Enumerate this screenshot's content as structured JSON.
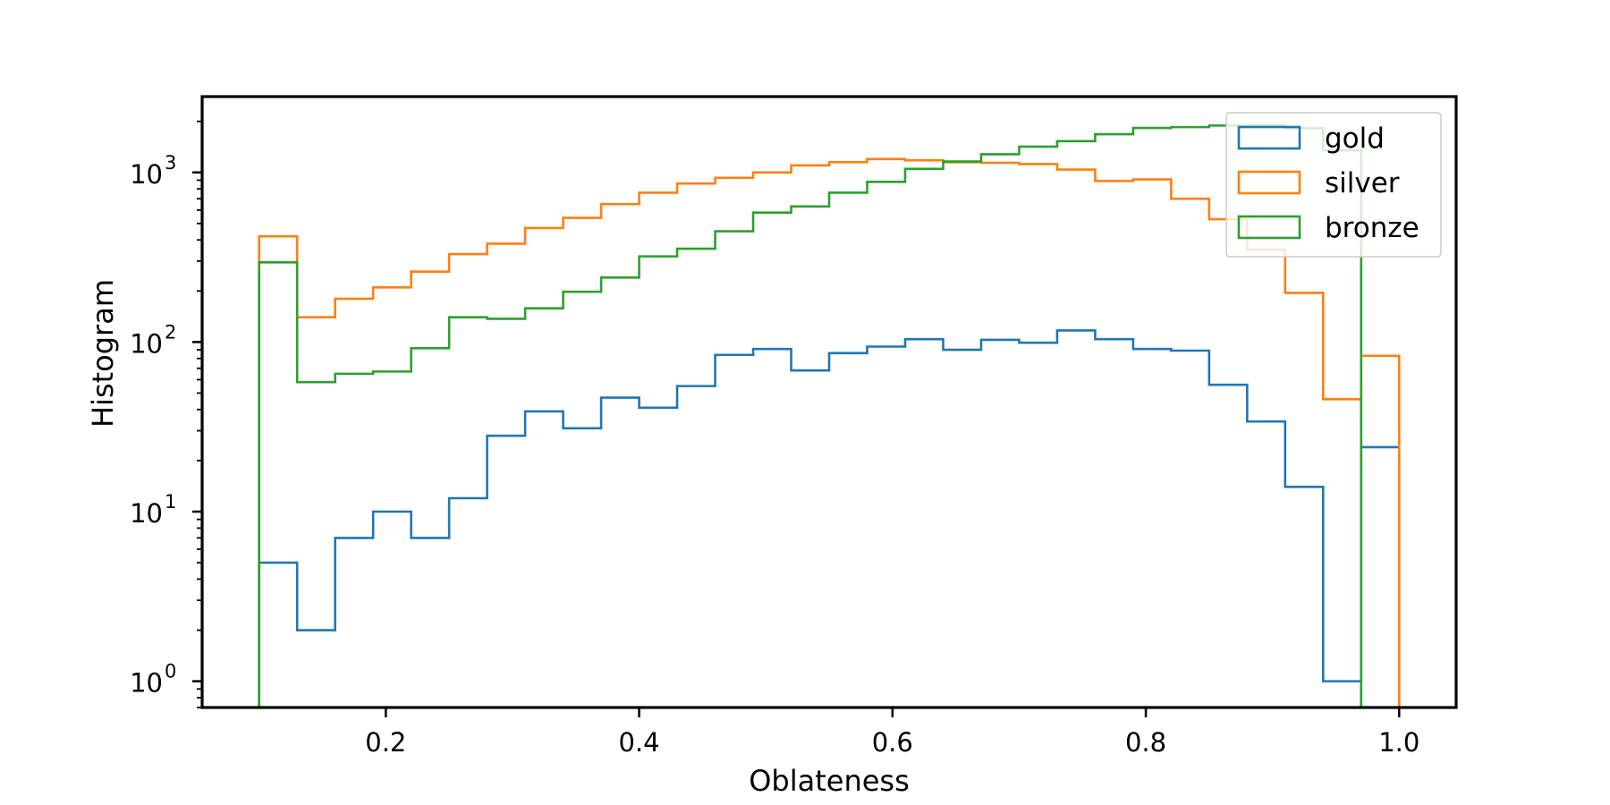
{
  "chart_data": {
    "type": "histogram",
    "xlabel": "Oblateness",
    "ylabel": "Histogram",
    "xlim": [
      0.055,
      1.045
    ],
    "ylim": [
      0.7,
      2800
    ],
    "yscale": "log",
    "xticks": [
      {
        "value": 0.2,
        "label": "0.2"
      },
      {
        "value": 0.4,
        "label": "0.4"
      },
      {
        "value": 0.6,
        "label": "0.6"
      },
      {
        "value": 0.8,
        "label": "0.8"
      },
      {
        "value": 1.0,
        "label": "1.0"
      }
    ],
    "yticks": [
      {
        "value": 1,
        "base": "10",
        "exp": "0"
      },
      {
        "value": 10,
        "base": "10",
        "exp": "1"
      },
      {
        "value": 100,
        "base": "10",
        "exp": "2"
      },
      {
        "value": 1000,
        "base": "10",
        "exp": "3"
      }
    ],
    "bin_edges": [
      0.1,
      0.13,
      0.16,
      0.19,
      0.22,
      0.25,
      0.28,
      0.31,
      0.34,
      0.37,
      0.4,
      0.43,
      0.46,
      0.49,
      0.52,
      0.55,
      0.58,
      0.61,
      0.64,
      0.67,
      0.7,
      0.73,
      0.76,
      0.79,
      0.82,
      0.85,
      0.88,
      0.91,
      0.94,
      0.97,
      1.0
    ],
    "series": [
      {
        "name": "gold",
        "color": "#1f77b4",
        "values": [
          5,
          2,
          7,
          10,
          7,
          12,
          28,
          39,
          31,
          47,
          41,
          55,
          84,
          91,
          68,
          86,
          94,
          104,
          90,
          103,
          99,
          117,
          104,
          91,
          89,
          56,
          34,
          14,
          1,
          24
        ]
      },
      {
        "name": "silver",
        "color": "#ff7f0e",
        "values": [
          420,
          140,
          180,
          210,
          260,
          330,
          380,
          470,
          540,
          650,
          760,
          860,
          930,
          1000,
          1100,
          1150,
          1200,
          1180,
          1150,
          1140,
          1120,
          1040,
          890,
          910,
          700,
          530,
          350,
          195,
          46,
          83
        ]
      },
      {
        "name": "bronze",
        "color": "#2ca02c",
        "values": [
          295,
          58,
          65,
          67,
          92,
          140,
          137,
          158,
          198,
          240,
          320,
          355,
          450,
          580,
          630,
          760,
          880,
          1050,
          1160,
          1280,
          1420,
          1530,
          1680,
          1830,
          1850,
          1890,
          1900,
          1820,
          1350,
          0
        ]
      }
    ],
    "legend": {
      "position": "upper right",
      "entries": [
        "gold",
        "silver",
        "bronze"
      ]
    },
    "grid": false
  }
}
